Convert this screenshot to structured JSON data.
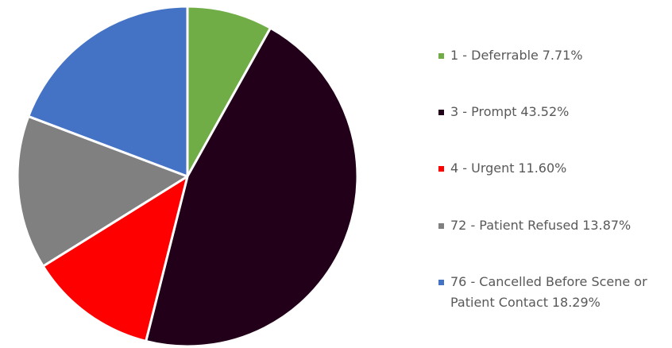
{
  "chart_data": {
    "type": "pie",
    "categories": [
      "1 - Deferrable",
      "3 - Prompt",
      "4 - Urgent",
      "72 - Patient Refused",
      "76 - Cancelled Before Scene or Patient Contact"
    ],
    "values": [
      7.71,
      43.52,
      11.6,
      13.87,
      18.29
    ],
    "value_labels": [
      "7.71%",
      "43.52%",
      "11.60%",
      "13.87%",
      "18.29%"
    ],
    "colors": [
      "#70ad47",
      "#22001a",
      "#ff0000",
      "#808080",
      "#4472c4"
    ],
    "legend": "right"
  }
}
